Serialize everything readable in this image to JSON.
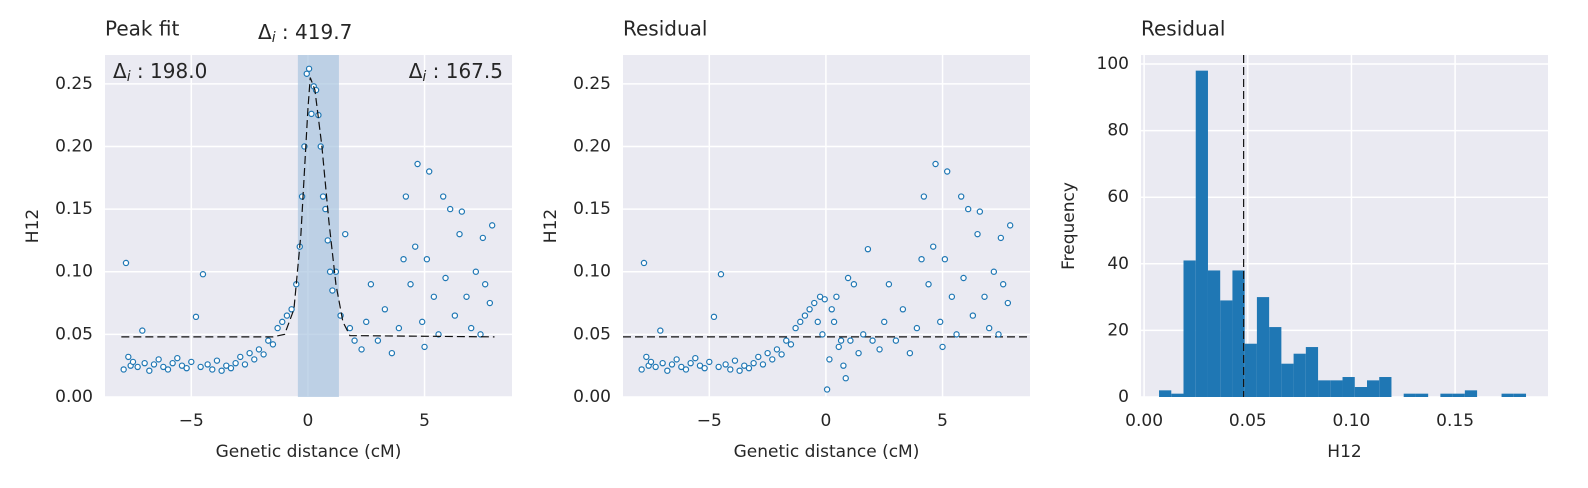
{
  "chart_data": [
    {
      "type": "scatter",
      "title": "Peak fit",
      "xlabel": "Genetic distance (cM)",
      "ylabel": "H12",
      "xlim": [
        -8.7,
        8.75
      ],
      "ylim": [
        0,
        0.273
      ],
      "xticks": [
        {
          "value": -5,
          "label": "−5"
        },
        0,
        5
      ],
      "yticks": [
        {
          "value": 0,
          "label": "0.00"
        },
        {
          "value": 0.05,
          "label": "0.05"
        },
        {
          "value": 0.1,
          "label": "0.10"
        },
        {
          "value": 0.15,
          "label": "0.15"
        },
        {
          "value": 0.2,
          "label": "0.20"
        },
        {
          "value": 0.25,
          "label": "0.25"
        }
      ],
      "grid": true,
      "x": [
        -7.9,
        -7.8,
        -7.7,
        -7.6,
        -7.5,
        -7.3,
        -7.1,
        -7.0,
        -6.8,
        -6.6,
        -6.4,
        -6.2,
        -6.0,
        -5.8,
        -5.6,
        -5.4,
        -5.2,
        -5.0,
        -4.8,
        -4.6,
        -4.5,
        -4.3,
        -4.1,
        -3.9,
        -3.7,
        -3.5,
        -3.3,
        -3.1,
        -2.9,
        -2.7,
        -2.5,
        -2.3,
        -2.1,
        -1.9,
        -1.7,
        -1.5,
        -1.3,
        -1.1,
        -0.9,
        -0.7,
        -0.5,
        -0.35,
        -0.25,
        -0.15,
        -0.05,
        0.05,
        0.15,
        0.25,
        0.35,
        0.45,
        0.55,
        0.65,
        0.75,
        0.85,
        0.95,
        1.05,
        1.2,
        1.4,
        1.6,
        1.8,
        2.0,
        2.3,
        2.5,
        2.7,
        3.0,
        3.3,
        3.6,
        3.9,
        4.1,
        4.2,
        4.4,
        4.6,
        4.7,
        4.9,
        5.0,
        5.1,
        5.2,
        5.4,
        5.6,
        5.8,
        5.9,
        6.1,
        6.3,
        6.5,
        6.6,
        6.8,
        7.0,
        7.2,
        7.4,
        7.5,
        7.6,
        7.8,
        7.9
      ],
      "series": [
        {
          "color": "#1f77b4",
          "values": [
            0.022,
            0.107,
            0.032,
            0.025,
            0.028,
            0.024,
            0.053,
            0.027,
            0.021,
            0.026,
            0.03,
            0.024,
            0.022,
            0.027,
            0.031,
            0.025,
            0.023,
            0.028,
            0.064,
            0.024,
            0.098,
            0.026,
            0.022,
            0.029,
            0.021,
            0.025,
            0.023,
            0.027,
            0.032,
            0.026,
            0.035,
            0.03,
            0.038,
            0.034,
            0.045,
            0.042,
            0.055,
            0.06,
            0.065,
            0.07,
            0.09,
            0.12,
            0.16,
            0.2,
            0.258,
            0.262,
            0.226,
            0.248,
            0.245,
            0.225,
            0.2,
            0.16,
            0.15,
            0.125,
            0.1,
            0.085,
            0.1,
            0.065,
            0.13,
            0.055,
            0.045,
            0.038,
            0.06,
            0.09,
            0.045,
            0.07,
            0.035,
            0.055,
            0.11,
            0.16,
            0.09,
            0.12,
            0.186,
            0.06,
            0.04,
            0.11,
            0.18,
            0.08,
            0.05,
            0.16,
            0.095,
            0.15,
            0.065,
            0.13,
            0.148,
            0.08,
            0.055,
            0.1,
            0.05,
            0.127,
            0.09,
            0.075,
            0.137
          ]
        }
      ],
      "fit": {
        "x": [
          -8,
          -1.5,
          -1,
          -0.6,
          -0.3,
          0,
          0.1,
          0.3,
          0.6,
          0.9,
          1.2,
          1.5,
          1.8,
          8
        ],
        "values": [
          0.048,
          0.048,
          0.05,
          0.07,
          0.13,
          0.23,
          0.255,
          0.245,
          0.2,
          0.14,
          0.09,
          0.06,
          0.049,
          0.048
        ]
      },
      "span": [
        -0.43,
        1.33
      ],
      "span_color": "#a9c4e0",
      "annotations": [
        {
          "symbol": "Δ",
          "subscript": "i",
          "text": " : 198.0"
        },
        {
          "symbol": "Δ",
          "subscript": "i",
          "text": " : 419.7"
        },
        {
          "symbol": "Δ",
          "subscript": "i",
          "text": " : 167.5"
        }
      ]
    },
    {
      "type": "scatter",
      "title": "Residual",
      "xlabel": "Genetic distance (cM)",
      "ylabel": "H12",
      "xlim": [
        -8.7,
        8.75
      ],
      "ylim": [
        0,
        0.273
      ],
      "xticks": [
        {
          "value": -5,
          "label": "−5"
        },
        0,
        5
      ],
      "yticks": [
        {
          "value": 0,
          "label": "0.00"
        },
        {
          "value": 0.05,
          "label": "0.05"
        },
        {
          "value": 0.1,
          "label": "0.10"
        },
        {
          "value": 0.15,
          "label": "0.15"
        },
        {
          "value": 0.2,
          "label": "0.20"
        },
        {
          "value": 0.25,
          "label": "0.25"
        }
      ],
      "grid": true,
      "x": [
        -7.9,
        -7.8,
        -7.7,
        -7.6,
        -7.5,
        -7.3,
        -7.1,
        -7.0,
        -6.8,
        -6.6,
        -6.4,
        -6.2,
        -6.0,
        -5.8,
        -5.6,
        -5.4,
        -5.2,
        -5.0,
        -4.8,
        -4.6,
        -4.5,
        -4.3,
        -4.1,
        -3.9,
        -3.7,
        -3.5,
        -3.3,
        -3.1,
        -2.9,
        -2.7,
        -2.5,
        -2.3,
        -2.1,
        -1.9,
        -1.7,
        -1.5,
        -1.3,
        -1.1,
        -0.9,
        -0.7,
        -0.5,
        -0.35,
        -0.25,
        -0.15,
        -0.05,
        0.05,
        0.15,
        0.25,
        0.35,
        0.45,
        0.55,
        0.65,
        0.75,
        0.85,
        0.95,
        1.05,
        1.2,
        1.4,
        1.6,
        1.8,
        2.0,
        2.3,
        2.5,
        2.7,
        3.0,
        3.3,
        3.6,
        3.9,
        4.1,
        4.2,
        4.4,
        4.6,
        4.7,
        4.9,
        5.0,
        5.1,
        5.2,
        5.4,
        5.6,
        5.8,
        5.9,
        6.1,
        6.3,
        6.5,
        6.6,
        6.8,
        7.0,
        7.2,
        7.4,
        7.5,
        7.6,
        7.8,
        7.9
      ],
      "series": [
        {
          "color": "#1f77b4",
          "values": [
            0.022,
            0.107,
            0.032,
            0.025,
            0.028,
            0.024,
            0.053,
            0.027,
            0.021,
            0.026,
            0.03,
            0.024,
            0.022,
            0.027,
            0.031,
            0.025,
            0.023,
            0.028,
            0.064,
            0.024,
            0.098,
            0.026,
            0.022,
            0.029,
            0.021,
            0.025,
            0.023,
            0.027,
            0.032,
            0.026,
            0.035,
            0.03,
            0.038,
            0.034,
            0.045,
            0.042,
            0.055,
            0.06,
            0.065,
            0.07,
            0.075,
            0.06,
            0.08,
            0.05,
            0.078,
            0.006,
            0.03,
            0.07,
            0.06,
            0.08,
            0.04,
            0.045,
            0.025,
            0.015,
            0.095,
            0.045,
            0.09,
            0.035,
            0.05,
            0.118,
            0.045,
            0.038,
            0.06,
            0.09,
            0.045,
            0.07,
            0.035,
            0.055,
            0.11,
            0.16,
            0.09,
            0.12,
            0.186,
            0.06,
            0.04,
            0.11,
            0.18,
            0.08,
            0.05,
            0.16,
            0.095,
            0.15,
            0.065,
            0.13,
            0.148,
            0.08,
            0.055,
            0.1,
            0.05,
            0.127,
            0.09,
            0.075,
            0.137
          ]
        }
      ],
      "hline": 0.048
    },
    {
      "type": "histogram",
      "title": "Residual",
      "xlabel": "H12",
      "ylabel": "Frequency",
      "xlim": [
        -0.0015,
        0.1948
      ],
      "ylim": [
        0,
        102.7
      ],
      "xticks": [
        {
          "value": 0,
          "label": "0.00"
        },
        {
          "value": 0.05,
          "label": "0.05"
        },
        {
          "value": 0.1,
          "label": "0.10"
        },
        {
          "value": 0.15,
          "label": "0.15"
        }
      ],
      "yticks": [
        0,
        20,
        40,
        60,
        80,
        100
      ],
      "grid": true,
      "bins": [
        0.0072,
        0.0131,
        0.019,
        0.0249,
        0.0308,
        0.0367,
        0.0426,
        0.0485,
        0.0544,
        0.0603,
        0.0662,
        0.0721,
        0.078,
        0.0839,
        0.0898,
        0.0957,
        0.1016,
        0.1075,
        0.1134,
        0.1193,
        0.1252,
        0.1311,
        0.137,
        0.1429,
        0.1488,
        0.1547,
        0.1606,
        0.1665,
        0.1724,
        0.1783,
        0.1842
      ],
      "series": [
        {
          "color": "#1f77b4",
          "values": [
            2,
            1,
            41,
            98,
            38,
            29,
            38,
            16,
            30,
            21,
            10,
            13,
            15,
            5,
            5,
            6,
            3,
            5,
            6,
            0,
            1,
            1,
            0,
            1,
            1,
            2,
            0,
            0,
            1,
            1
          ]
        }
      ],
      "vline": 0.048
    }
  ]
}
